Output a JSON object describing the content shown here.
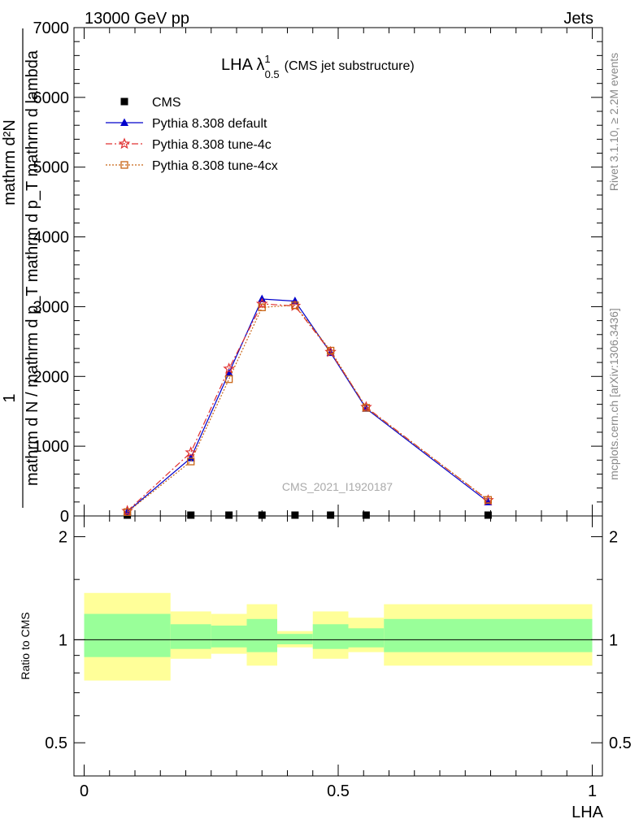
{
  "header": {
    "left": "13000 GeV pp",
    "right": "Jets"
  },
  "side_labels": {
    "rivet": "Rivet 3.1.10, ≥ 2.2M events",
    "mcplots": "mcplots.cern.ch [arXiv:1306.3436]"
  },
  "watermark": "CMS_2021_I1920187",
  "title": {
    "main": "LHA λ",
    "sup": "1",
    "sub": "0.5",
    "note": "(CMS jet substructure)"
  },
  "ylabel_main": {
    "one": "1",
    "num": "mathrm d²N",
    "den": "mathrm d N / mathrm d p_T mathrm d p_T mathrm d lambda"
  },
  "ratio_ylabel": "Ratio to CMS",
  "xlabel": "LHA",
  "chart_data": {
    "type": "line",
    "main": {
      "xlim": [
        -0.02,
        1.02
      ],
      "ylim": [
        0,
        7000
      ],
      "yticks": [
        0,
        1000,
        2000,
        3000,
        4000,
        5000,
        6000,
        7000
      ],
      "ytick_labels": [
        "0",
        "1000",
        "2000",
        "3000",
        "4000",
        "5000",
        "6000",
        "7000"
      ],
      "series": [
        {
          "name": "CMS",
          "color": "#000000",
          "marker": "square",
          "x": [
            0.085,
            0.21,
            0.285,
            0.35,
            0.415,
            0.485,
            0.555,
            0.795
          ],
          "y": [
            0,
            0,
            0,
            0,
            0,
            0,
            0,
            0
          ]
        },
        {
          "name": "Pythia 8.308 default",
          "color": "#0000cc",
          "marker": "triangle",
          "dash": "",
          "x": [
            0.085,
            0.21,
            0.285,
            0.35,
            0.415,
            0.485,
            0.555,
            0.795
          ],
          "y": [
            60,
            830,
            2050,
            3110,
            3080,
            2340,
            1540,
            200
          ]
        },
        {
          "name": "Pythia 8.308 tune-4c",
          "color": "#e03030",
          "marker": "star",
          "dash": "8,3,2,3",
          "x": [
            0.085,
            0.21,
            0.285,
            0.35,
            0.415,
            0.485,
            0.555,
            0.795
          ],
          "y": [
            70,
            910,
            2110,
            3040,
            3010,
            2350,
            1560,
            225
          ]
        },
        {
          "name": "Pythia 8.308 tune-4cx",
          "color": "#c86414",
          "marker": "open-square",
          "dash": "2,2",
          "x": [
            0.085,
            0.21,
            0.285,
            0.35,
            0.415,
            0.485,
            0.555,
            0.795
          ],
          "y": [
            55,
            780,
            1960,
            2990,
            3020,
            2370,
            1550,
            230
          ]
        }
      ]
    },
    "ratio": {
      "ylim": [
        0.4,
        2.3
      ],
      "yticks": [
        0.5,
        1,
        2
      ],
      "ytick_labels": [
        "0.5",
        "1",
        "2"
      ],
      "xticks": [
        0,
        0.5,
        1
      ],
      "xtick_labels": [
        "0",
        "0.5",
        "1"
      ],
      "bins": [
        {
          "x0": 0.0,
          "x1": 0.17,
          "inner": [
            0.89,
            1.19
          ],
          "outer": [
            0.76,
            1.37
          ]
        },
        {
          "x0": 0.17,
          "x1": 0.25,
          "inner": [
            0.94,
            1.11
          ],
          "outer": [
            0.88,
            1.21
          ]
        },
        {
          "x0": 0.25,
          "x1": 0.32,
          "inner": [
            0.95,
            1.1
          ],
          "outer": [
            0.91,
            1.19
          ]
        },
        {
          "x0": 0.32,
          "x1": 0.38,
          "inner": [
            0.92,
            1.15
          ],
          "outer": [
            0.84,
            1.27
          ]
        },
        {
          "x0": 0.38,
          "x1": 0.45,
          "inner": [
            0.97,
            1.04
          ],
          "outer": [
            0.95,
            1.06
          ]
        },
        {
          "x0": 0.45,
          "x1": 0.52,
          "inner": [
            0.94,
            1.11
          ],
          "outer": [
            0.88,
            1.21
          ]
        },
        {
          "x0": 0.52,
          "x1": 0.59,
          "inner": [
            0.95,
            1.08
          ],
          "outer": [
            0.92,
            1.16
          ]
        },
        {
          "x0": 0.59,
          "x1": 1.0,
          "inner": [
            0.92,
            1.15
          ],
          "outer": [
            0.84,
            1.27
          ]
        }
      ],
      "inner_color": "#99ff99",
      "outer_color": "#ffff99"
    }
  }
}
